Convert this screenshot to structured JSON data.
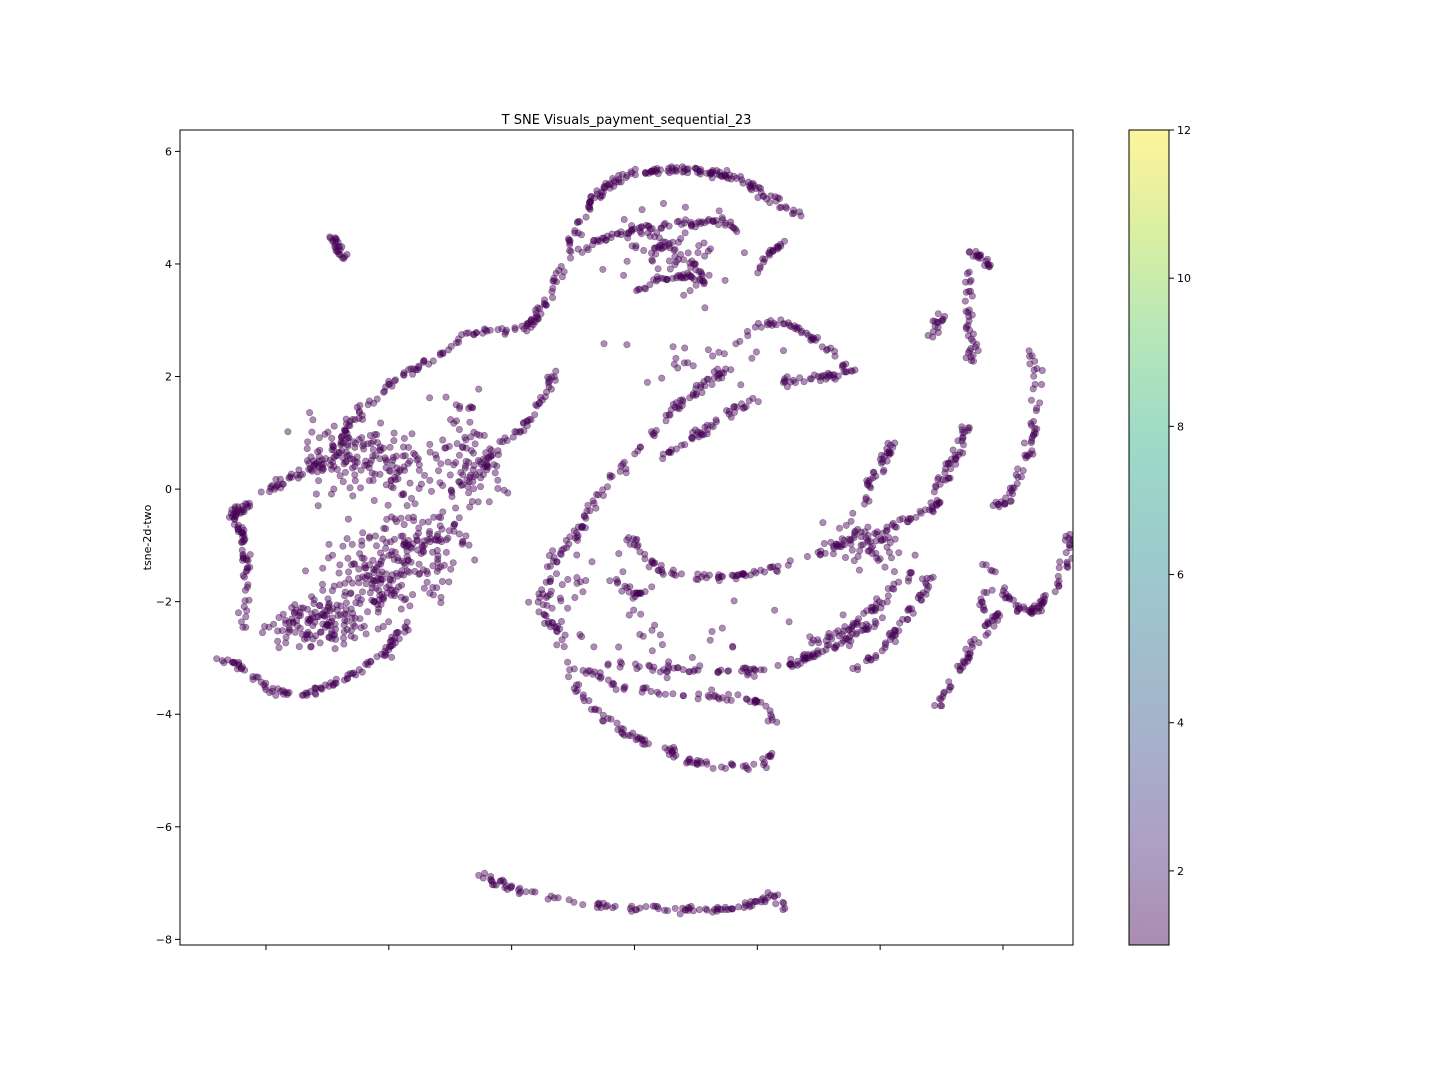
{
  "chart_data": {
    "type": "scatter",
    "title": "T SNE Visuals_payment_sequential_23",
    "xlabel": "",
    "ylabel": "tsne-2d-two",
    "xlim": [
      -1,
      6.27
    ],
    "ylim": [
      -8.1,
      6.38
    ],
    "x_ticks": [
      -0.3,
      0.7,
      1.7,
      2.7,
      3.7,
      4.7,
      5.7
    ],
    "x_tick_labels_visible": false,
    "y_ticks": [
      -8,
      -6,
      -4,
      -2,
      0,
      2,
      4,
      6
    ],
    "y_tick_labels": [
      "−8",
      "−6",
      "−4",
      "−2",
      "0",
      "2",
      "4",
      "6"
    ],
    "grid": false,
    "point_color": "#440154",
    "point_opacity": 0.45,
    "colorbar": {
      "colormap": "viridis",
      "range": [
        1,
        12
      ],
      "ticks": [
        2,
        4,
        6,
        8,
        10,
        12
      ],
      "tick_labels": [
        "2",
        "4",
        "6",
        "8",
        "10",
        "12"
      ],
      "opacity": 0.45
    },
    "clusters": [
      {
        "kind": "curve",
        "points": [
          [
            0.25,
            4.48
          ],
          [
            0.33,
            4.1
          ]
        ],
        "n": 25
      },
      {
        "kind": "curve",
        "points": [
          [
            -0.67,
            -3.0
          ],
          [
            -0.45,
            -3.2
          ],
          [
            -0.25,
            -3.6
          ],
          [
            0.0,
            -3.65
          ],
          [
            0.2,
            -3.5
          ],
          [
            0.4,
            -3.3
          ],
          [
            0.6,
            -3.05
          ],
          [
            0.75,
            -2.7
          ],
          [
            0.85,
            -2.4
          ]
        ],
        "n": 100
      },
      {
        "kind": "curve",
        "points": [
          [
            -0.6,
            -0.5
          ],
          [
            -0.4,
            -0.2
          ],
          [
            -0.2,
            0.1
          ],
          [
            0.1,
            0.4
          ],
          [
            0.3,
            0.8
          ],
          [
            0.4,
            1.2
          ],
          [
            0.5,
            1.55
          ]
        ],
        "n": 70
      },
      {
        "kind": "curve",
        "points": [
          [
            0.5,
            1.5
          ],
          [
            0.75,
            1.9
          ],
          [
            0.95,
            2.2
          ],
          [
            1.2,
            2.5
          ],
          [
            1.3,
            2.75
          ],
          [
            1.6,
            2.82
          ],
          [
            1.85,
            2.85
          ]
        ],
        "n": 60
      },
      {
        "kind": "curve",
        "points": [
          [
            1.4,
            0.2
          ],
          [
            1.55,
            0.6
          ],
          [
            1.75,
            1.0
          ],
          [
            1.9,
            1.4
          ],
          [
            2.0,
            1.8
          ],
          [
            2.05,
            2.2
          ]
        ],
        "n": 50
      },
      {
        "kind": "blob",
        "center": [
          0.1,
          -2.4
        ],
        "spread": [
          0.35,
          0.5
        ],
        "n": 120
      },
      {
        "kind": "blob",
        "center": [
          0.55,
          -1.6
        ],
        "spread": [
          0.45,
          0.9
        ],
        "n": 160
      },
      {
        "kind": "blob",
        "center": [
          0.3,
          0.6
        ],
        "spread": [
          0.35,
          0.6
        ],
        "n": 90
      },
      {
        "kind": "blob",
        "center": [
          1.0,
          -1.0
        ],
        "spread": [
          0.3,
          1.0
        ],
        "n": 110
      },
      {
        "kind": "blob",
        "center": [
          1.35,
          0.5
        ],
        "spread": [
          0.3,
          1.0
        ],
        "n": 100
      },
      {
        "kind": "blob",
        "center": [
          0.7,
          0.5
        ],
        "spread": [
          0.25,
          0.7
        ],
        "n": 70
      },
      {
        "kind": "curve",
        "points": [
          [
            -0.5,
            -2.5
          ],
          [
            -0.45,
            -1.5
          ],
          [
            -0.5,
            -0.8
          ],
          [
            -0.55,
            -0.3
          ]
        ],
        "n": 60
      },
      {
        "kind": "curve",
        "points": [
          [
            1.8,
            2.8
          ],
          [
            1.95,
            3.2
          ],
          [
            2.1,
            3.8
          ],
          [
            2.2,
            4.5
          ],
          [
            2.35,
            5.1
          ],
          [
            2.5,
            5.45
          ],
          [
            2.7,
            5.6
          ],
          [
            3.0,
            5.68
          ],
          [
            3.3,
            5.65
          ],
          [
            3.5,
            5.55
          ],
          [
            3.7,
            5.35
          ],
          [
            3.9,
            5.05
          ],
          [
            4.05,
            4.85
          ]
        ],
        "n": 190
      },
      {
        "kind": "curve",
        "points": [
          [
            2.25,
            4.2
          ],
          [
            2.5,
            4.5
          ],
          [
            2.8,
            4.65
          ],
          [
            3.1,
            4.72
          ],
          [
            3.4,
            4.78
          ],
          [
            3.55,
            4.6
          ]
        ],
        "n": 70
      },
      {
        "kind": "curve",
        "points": [
          [
            2.7,
            3.5
          ],
          [
            2.9,
            3.7
          ],
          [
            3.1,
            3.8
          ],
          [
            3.3,
            3.75
          ]
        ],
        "n": 30
      },
      {
        "kind": "curve",
        "points": [
          [
            2.8,
            4.2
          ],
          [
            2.95,
            4.35
          ],
          [
            3.2,
            4.0
          ],
          [
            3.25,
            3.6
          ]
        ],
        "n": 30
      },
      {
        "kind": "blob",
        "center": [
          3.0,
          4.3
        ],
        "spread": [
          0.5,
          0.8
        ],
        "n": 60
      },
      {
        "kind": "curve",
        "points": [
          [
            3.7,
            3.85
          ],
          [
            3.8,
            4.2
          ],
          [
            3.9,
            4.4
          ]
        ],
        "n": 20
      },
      {
        "kind": "curve",
        "points": [
          [
            3.5,
            2.55
          ],
          [
            3.7,
            2.9
          ],
          [
            3.9,
            3.0
          ],
          [
            4.05,
            2.85
          ],
          [
            4.25,
            2.5
          ],
          [
            4.45,
            2.1
          ]
        ],
        "n": 50
      },
      {
        "kind": "curve",
        "points": [
          [
            3.9,
            1.9
          ],
          [
            4.1,
            1.95
          ],
          [
            4.3,
            2.0
          ],
          [
            4.45,
            2.1
          ]
        ],
        "n": 30
      },
      {
        "kind": "curve",
        "points": [
          [
            2.9,
            0.55
          ],
          [
            3.1,
            0.8
          ],
          [
            3.3,
            1.1
          ],
          [
            3.5,
            1.4
          ],
          [
            3.7,
            1.6
          ]
        ],
        "n": 45
      },
      {
        "kind": "curve",
        "points": [
          [
            2.3,
            -0.5
          ],
          [
            2.45,
            0.0
          ],
          [
            2.65,
            0.5
          ],
          [
            2.85,
            1.0
          ],
          [
            3.05,
            1.5
          ],
          [
            3.3,
            1.9
          ],
          [
            3.45,
            2.1
          ]
        ],
        "n": 70
      },
      {
        "kind": "curve",
        "points": [
          [
            1.95,
            -2.2
          ],
          [
            2.0,
            -1.5
          ],
          [
            2.15,
            -1.0
          ],
          [
            2.3,
            -0.6
          ]
        ],
        "n": 40
      },
      {
        "kind": "curve",
        "points": [
          [
            1.95,
            -2.2
          ],
          [
            2.1,
            -2.6
          ]
        ],
        "n": 15
      },
      {
        "kind": "curve",
        "points": [
          [
            2.65,
            -0.8
          ],
          [
            2.75,
            -1.1
          ],
          [
            2.9,
            -1.45
          ],
          [
            3.2,
            -1.55
          ],
          [
            3.5,
            -1.55
          ],
          [
            3.85,
            -1.4
          ],
          [
            4.1,
            -1.25
          ],
          [
            4.4,
            -1.0
          ],
          [
            4.7,
            -0.75
          ],
          [
            5.0,
            -0.5
          ],
          [
            5.2,
            -0.2
          ]
        ],
        "n": 120
      },
      {
        "kind": "curve",
        "points": [
          [
            5.1,
            -0.1
          ],
          [
            5.25,
            0.3
          ],
          [
            5.35,
            0.8
          ],
          [
            5.4,
            1.2
          ]
        ],
        "n": 40
      },
      {
        "kind": "curve",
        "points": [
          [
            4.55,
            -0.3
          ],
          [
            4.65,
            0.2
          ],
          [
            4.75,
            0.6
          ],
          [
            4.8,
            0.8
          ]
        ],
        "n": 35
      },
      {
        "kind": "blob",
        "center": [
          4.6,
          -1.0
        ],
        "spread": [
          0.35,
          0.6
        ],
        "n": 60
      },
      {
        "kind": "curve",
        "points": [
          [
            4.5,
            -3.2
          ],
          [
            4.7,
            -2.9
          ],
          [
            4.85,
            -2.5
          ],
          [
            5.0,
            -2.0
          ],
          [
            5.1,
            -1.6
          ]
        ],
        "n": 50
      },
      {
        "kind": "curve",
        "points": [
          [
            4.15,
            -2.75
          ],
          [
            4.35,
            -2.6
          ],
          [
            4.5,
            -2.4
          ],
          [
            4.65,
            -2.1
          ],
          [
            4.8,
            -1.8
          ],
          [
            4.95,
            -1.5
          ]
        ],
        "n": 50
      },
      {
        "kind": "curve",
        "points": [
          [
            3.9,
            -3.2
          ],
          [
            4.1,
            -3.0
          ],
          [
            4.3,
            -2.8
          ],
          [
            4.5,
            -2.6
          ],
          [
            4.7,
            -2.3
          ]
        ],
        "n": 40
      },
      {
        "kind": "curve",
        "points": [
          [
            2.5,
            -3.1
          ],
          [
            2.8,
            -3.15
          ],
          [
            3.1,
            -3.2
          ],
          [
            3.4,
            -3.25
          ],
          [
            3.7,
            -3.2
          ],
          [
            3.95,
            -3.1
          ],
          [
            4.2,
            -2.95
          ]
        ],
        "n": 60
      },
      {
        "kind": "curve",
        "points": [
          [
            2.3,
            -3.2
          ],
          [
            2.55,
            -3.5
          ],
          [
            2.85,
            -3.6
          ],
          [
            3.15,
            -3.65
          ],
          [
            3.45,
            -3.7
          ],
          [
            3.75,
            -3.8
          ],
          [
            3.85,
            -4.2
          ]
        ],
        "n": 60
      },
      {
        "kind": "curve",
        "points": [
          [
            2.15,
            -3.2
          ],
          [
            2.25,
            -3.6
          ],
          [
            2.4,
            -4.0
          ],
          [
            2.6,
            -4.3
          ],
          [
            2.8,
            -4.5
          ]
        ],
        "n": 40
      },
      {
        "kind": "curve",
        "points": [
          [
            2.95,
            -4.6
          ],
          [
            3.1,
            -4.8
          ],
          [
            3.3,
            -4.9
          ],
          [
            3.55,
            -4.95
          ],
          [
            3.75,
            -4.9
          ],
          [
            3.8,
            -4.7
          ]
        ],
        "n": 45
      },
      {
        "kind": "curve",
        "points": [
          [
            2.55,
            -1.6
          ],
          [
            2.7,
            -1.9
          ],
          [
            2.85,
            -1.75
          ]
        ],
        "n": 20
      },
      {
        "kind": "curve",
        "points": [
          [
            5.15,
            -3.9
          ],
          [
            5.25,
            -3.5
          ],
          [
            5.4,
            -3.0
          ],
          [
            5.55,
            -2.5
          ],
          [
            5.65,
            -2.2
          ]
        ],
        "n": 50
      },
      {
        "kind": "curve",
        "points": [
          [
            5.45,
            4.2
          ],
          [
            5.55,
            4.1
          ],
          [
            5.6,
            3.9
          ]
        ],
        "n": 20
      },
      {
        "kind": "curve",
        "points": [
          [
            5.4,
            3.9
          ],
          [
            5.42,
            3.3
          ],
          [
            5.45,
            2.6
          ],
          [
            5.45,
            2.2
          ]
        ],
        "n": 35
      },
      {
        "kind": "curve",
        "points": [
          [
            5.1,
            2.7
          ],
          [
            5.15,
            2.9
          ],
          [
            5.2,
            3.1
          ]
        ],
        "n": 15
      },
      {
        "kind": "curve",
        "points": [
          [
            5.95,
            2.4
          ],
          [
            5.98,
            1.8
          ],
          [
            5.95,
            1.0
          ],
          [
            5.85,
            0.3
          ],
          [
            5.75,
            -0.2
          ],
          [
            5.65,
            -0.3
          ]
        ],
        "n": 60
      },
      {
        "kind": "curve",
        "points": [
          [
            5.55,
            -1.3
          ],
          [
            5.65,
            -1.6
          ],
          [
            5.75,
            -2.0
          ],
          [
            5.9,
            -2.2
          ],
          [
            6.0,
            -2.1
          ],
          [
            6.1,
            -1.8
          ],
          [
            6.2,
            -1.4
          ],
          [
            6.25,
            -1.0
          ],
          [
            6.22,
            -0.8
          ]
        ],
        "n": 70
      },
      {
        "kind": "curve",
        "points": [
          [
            5.55,
            -2.2
          ],
          [
            5.5,
            -2.0
          ],
          [
            5.6,
            -1.8
          ]
        ],
        "n": 10
      },
      {
        "kind": "curve",
        "points": [
          [
            1.45,
            -6.88
          ],
          [
            1.65,
            -7.05
          ],
          [
            1.9,
            -7.2
          ],
          [
            2.2,
            -7.32
          ],
          [
            2.5,
            -7.42
          ],
          [
            2.8,
            -7.46
          ],
          [
            3.1,
            -7.47
          ],
          [
            3.4,
            -7.45
          ],
          [
            3.65,
            -7.38
          ],
          [
            3.85,
            -7.2
          ],
          [
            3.9,
            -7.4
          ]
        ],
        "n": 110
      },
      {
        "kind": "blob",
        "center": [
          2.2,
          -1.9
        ],
        "spread": [
          0.4,
          0.9
        ],
        "n": 30
      },
      {
        "kind": "blob",
        "center": [
          3.0,
          -2.8
        ],
        "spread": [
          1.2,
          0.7
        ],
        "n": 35
      },
      {
        "kind": "blob",
        "center": [
          3.3,
          2.2
        ],
        "spread": [
          0.7,
          0.6
        ],
        "n": 25
      }
    ]
  }
}
